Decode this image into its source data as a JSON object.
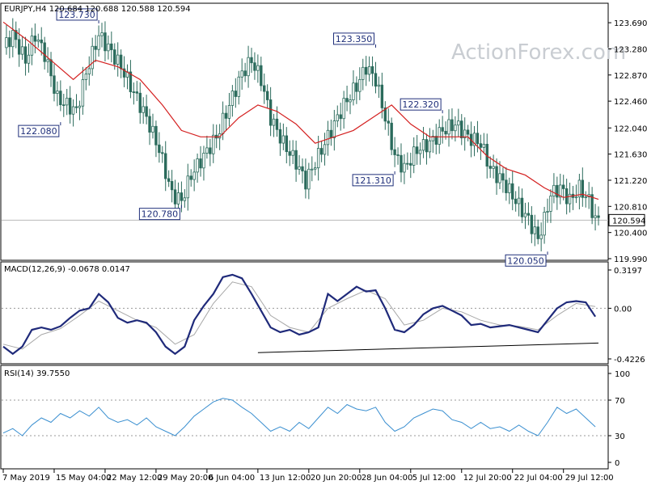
{
  "symbol_header": "EURJPY,H4  120.684 120.688 120.588 120.594",
  "watermark": "ActionForex.com",
  "colors": {
    "candles": "#2b6b5c",
    "ma": "#d42020",
    "macd": "#1f2a7a",
    "signal": "#a8a8a8",
    "rsi": "#3a8fd0",
    "border": "#000000",
    "label": "#1f2f7a"
  },
  "chart_data": [
    {
      "type": "candlestick",
      "panel": "price",
      "title": "EURJPY,H4",
      "ohlc_readout": [
        120.684,
        120.688,
        120.588,
        120.594
      ],
      "last_price": 120.594,
      "ylim": [
        119.99,
        123.97
      ],
      "yticks": [
        123.69,
        123.28,
        122.87,
        122.46,
        122.04,
        121.63,
        121.22,
        120.81,
        120.4,
        119.99
      ],
      "ytick_labels": [
        "123.690",
        "123.280",
        "122.870",
        "122.460",
        "122.040",
        "121.630",
        "121.220",
        "120.810",
        "120.400",
        "119.990"
      ],
      "last_label": "120.594",
      "close_path": [
        [
          0,
          123.3
        ],
        [
          3,
          123.5
        ],
        [
          7,
          123.1
        ],
        [
          10,
          123.5
        ],
        [
          13,
          123.2
        ],
        [
          17,
          122.5
        ],
        [
          20,
          122.4
        ],
        [
          23,
          122.3
        ],
        [
          26,
          122.9
        ],
        [
          30,
          123.5
        ],
        [
          33,
          123.3
        ],
        [
          37,
          123.0
        ],
        [
          41,
          122.6
        ],
        [
          45,
          122.2
        ],
        [
          49,
          121.7
        ],
        [
          53,
          121.0
        ],
        [
          56,
          120.9
        ],
        [
          59,
          121.3
        ],
        [
          63,
          121.6
        ],
        [
          67,
          121.9
        ],
        [
          71,
          122.4
        ],
        [
          75,
          122.9
        ],
        [
          78,
          123.1
        ],
        [
          81,
          122.8
        ],
        [
          84,
          122.2
        ],
        [
          88,
          121.8
        ],
        [
          92,
          121.5
        ],
        [
          95,
          121.2
        ],
        [
          99,
          121.6
        ],
        [
          103,
          122.0
        ],
        [
          107,
          122.4
        ],
        [
          111,
          122.7
        ],
        [
          114,
          123.0
        ],
        [
          117,
          122.8
        ],
        [
          120,
          122.2
        ],
        [
          123,
          121.6
        ],
        [
          126,
          121.4
        ],
        [
          130,
          121.7
        ],
        [
          134,
          121.8
        ],
        [
          138,
          122.0
        ],
        [
          142,
          122.1
        ],
        [
          146,
          121.9
        ],
        [
          150,
          121.8
        ],
        [
          153,
          121.4
        ],
        [
          157,
          121.2
        ],
        [
          161,
          120.9
        ],
        [
          165,
          120.6
        ],
        [
          168,
          120.3
        ],
        [
          170,
          120.6
        ],
        [
          172,
          121.0
        ],
        [
          175,
          121.1
        ],
        [
          178,
          120.9
        ],
        [
          181,
          121.1
        ],
        [
          184,
          120.9
        ],
        [
          186,
          120.6
        ]
      ],
      "ma_path": [
        [
          0,
          123.7
        ],
        [
          8,
          123.4
        ],
        [
          15,
          123.1
        ],
        [
          22,
          122.8
        ],
        [
          29,
          123.1
        ],
        [
          36,
          123.0
        ],
        [
          43,
          122.8
        ],
        [
          50,
          122.4
        ],
        [
          56,
          122.0
        ],
        [
          62,
          121.9
        ],
        [
          68,
          121.9
        ],
        [
          74,
          122.2
        ],
        [
          80,
          122.4
        ],
        [
          86,
          122.3
        ],
        [
          92,
          122.1
        ],
        [
          98,
          121.8
        ],
        [
          104,
          121.9
        ],
        [
          110,
          122.0
        ],
        [
          116,
          122.2
        ],
        [
          122,
          122.4
        ],
        [
          128,
          122.1
        ],
        [
          134,
          121.9
        ],
        [
          140,
          121.9
        ],
        [
          146,
          121.9
        ],
        [
          152,
          121.6
        ],
        [
          158,
          121.4
        ],
        [
          164,
          121.3
        ],
        [
          170,
          121.1
        ],
        [
          176,
          120.95
        ],
        [
          182,
          121.0
        ],
        [
          187,
          120.92
        ]
      ],
      "annotations": [
        {
          "text": "123.730",
          "x": 30,
          "value": 123.73
        },
        {
          "text": "122.080",
          "x": 18,
          "value": 122.08
        },
        {
          "text": "120.780",
          "x": 56,
          "value": 120.78
        },
        {
          "text": "123.350",
          "x": 117,
          "value": 123.35
        },
        {
          "text": "122.320",
          "x": 138,
          "value": 122.32
        },
        {
          "text": "121.310",
          "x": 123,
          "value": 121.31
        },
        {
          "text": "120.050",
          "x": 171,
          "value": 120.05
        }
      ]
    },
    {
      "type": "line",
      "panel": "macd",
      "title": "MACD(12,26,9) -0.0678 0.0147",
      "ylim": [
        -0.4226,
        0.3197
      ],
      "ytick_labels": [
        "0.3197",
        "0.00",
        "-0.4226"
      ],
      "series": [
        {
          "name": "MACD",
          "points": [
            [
              0,
              -0.32
            ],
            [
              3,
              -0.38
            ],
            [
              6,
              -0.32
            ],
            [
              9,
              -0.18
            ],
            [
              12,
              -0.16
            ],
            [
              15,
              -0.18
            ],
            [
              18,
              -0.15
            ],
            [
              21,
              -0.08
            ],
            [
              24,
              -0.02
            ],
            [
              27,
              0.0
            ],
            [
              30,
              0.12
            ],
            [
              33,
              0.05
            ],
            [
              36,
              -0.08
            ],
            [
              39,
              -0.12
            ],
            [
              42,
              -0.1
            ],
            [
              45,
              -0.12
            ],
            [
              48,
              -0.2
            ],
            [
              51,
              -0.32
            ],
            [
              54,
              -0.38
            ],
            [
              57,
              -0.32
            ],
            [
              60,
              -0.1
            ],
            [
              63,
              0.02
            ],
            [
              66,
              0.12
            ],
            [
              69,
              0.26
            ],
            [
              72,
              0.28
            ],
            [
              75,
              0.25
            ],
            [
              78,
              0.12
            ],
            [
              81,
              -0.02
            ],
            [
              84,
              -0.16
            ],
            [
              87,
              -0.2
            ],
            [
              90,
              -0.18
            ],
            [
              93,
              -0.22
            ],
            [
              96,
              -0.2
            ],
            [
              99,
              -0.16
            ],
            [
              102,
              0.12
            ],
            [
              105,
              0.06
            ],
            [
              108,
              0.12
            ],
            [
              111,
              0.18
            ],
            [
              114,
              0.14
            ],
            [
              117,
              0.15
            ],
            [
              120,
              0.0
            ],
            [
              123,
              -0.18
            ],
            [
              126,
              -0.2
            ],
            [
              129,
              -0.14
            ],
            [
              132,
              -0.05
            ],
            [
              135,
              0.0
            ],
            [
              138,
              0.02
            ],
            [
              141,
              -0.02
            ],
            [
              144,
              -0.06
            ],
            [
              147,
              -0.14
            ],
            [
              150,
              -0.13
            ],
            [
              153,
              -0.16
            ],
            [
              156,
              -0.15
            ],
            [
              159,
              -0.14
            ],
            [
              162,
              -0.16
            ],
            [
              165,
              -0.18
            ],
            [
              168,
              -0.2
            ],
            [
              171,
              -0.1
            ],
            [
              174,
              0.0
            ],
            [
              177,
              0.05
            ],
            [
              180,
              0.06
            ],
            [
              183,
              0.05
            ],
            [
              186,
              -0.07
            ]
          ]
        },
        {
          "name": "Signal",
          "points": [
            [
              0,
              -0.3
            ],
            [
              6,
              -0.34
            ],
            [
              12,
              -0.22
            ],
            [
              18,
              -0.17
            ],
            [
              24,
              -0.06
            ],
            [
              30,
              0.06
            ],
            [
              36,
              -0.02
            ],
            [
              42,
              -0.1
            ],
            [
              48,
              -0.16
            ],
            [
              54,
              -0.3
            ],
            [
              60,
              -0.22
            ],
            [
              66,
              0.04
            ],
            [
              72,
              0.22
            ],
            [
              78,
              0.18
            ],
            [
              84,
              -0.06
            ],
            [
              90,
              -0.16
            ],
            [
              96,
              -0.2
            ],
            [
              102,
              0.0
            ],
            [
              108,
              0.08
            ],
            [
              114,
              0.15
            ],
            [
              120,
              0.08
            ],
            [
              126,
              -0.14
            ],
            [
              132,
              -0.1
            ],
            [
              138,
              0.0
            ],
            [
              144,
              -0.03
            ],
            [
              150,
              -0.1
            ],
            [
              156,
              -0.14
            ],
            [
              162,
              -0.15
            ],
            [
              168,
              -0.18
            ],
            [
              174,
              -0.06
            ],
            [
              180,
              0.04
            ],
            [
              186,
              0.015
            ]
          ]
        }
      ],
      "trendline": [
        [
          80,
          -0.37
        ],
        [
          187,
          -0.29
        ]
      ]
    },
    {
      "type": "line",
      "panel": "rsi",
      "title": "RSI(14) 39.7550",
      "ylim": [
        0,
        100
      ],
      "ytick_labels": [
        "100",
        "70",
        "30",
        "0"
      ],
      "levels": [
        70,
        30
      ],
      "series": [
        {
          "name": "RSI(14)",
          "points": [
            [
              0,
              33
            ],
            [
              3,
              38
            ],
            [
              6,
              30
            ],
            [
              9,
              42
            ],
            [
              12,
              50
            ],
            [
              15,
              45
            ],
            [
              18,
              55
            ],
            [
              21,
              50
            ],
            [
              24,
              58
            ],
            [
              27,
              52
            ],
            [
              30,
              62
            ],
            [
              33,
              50
            ],
            [
              36,
              45
            ],
            [
              39,
              48
            ],
            [
              42,
              42
            ],
            [
              45,
              50
            ],
            [
              48,
              40
            ],
            [
              51,
              35
            ],
            [
              54,
              30
            ],
            [
              57,
              40
            ],
            [
              60,
              52
            ],
            [
              63,
              60
            ],
            [
              66,
              68
            ],
            [
              69,
              72
            ],
            [
              72,
              70
            ],
            [
              75,
              62
            ],
            [
              78,
              55
            ],
            [
              81,
              45
            ],
            [
              84,
              35
            ],
            [
              87,
              40
            ],
            [
              90,
              35
            ],
            [
              93,
              45
            ],
            [
              96,
              38
            ],
            [
              99,
              50
            ],
            [
              102,
              62
            ],
            [
              105,
              55
            ],
            [
              108,
              65
            ],
            [
              111,
              60
            ],
            [
              114,
              58
            ],
            [
              117,
              62
            ],
            [
              120,
              45
            ],
            [
              123,
              35
            ],
            [
              126,
              40
            ],
            [
              129,
              50
            ],
            [
              132,
              55
            ],
            [
              135,
              60
            ],
            [
              138,
              58
            ],
            [
              141,
              48
            ],
            [
              144,
              45
            ],
            [
              147,
              38
            ],
            [
              150,
              45
            ],
            [
              153,
              38
            ],
            [
              156,
              40
            ],
            [
              159,
              35
            ],
            [
              162,
              42
            ],
            [
              165,
              35
            ],
            [
              168,
              30
            ],
            [
              171,
              45
            ],
            [
              174,
              62
            ],
            [
              177,
              55
            ],
            [
              180,
              60
            ],
            [
              183,
              50
            ],
            [
              186,
              40
            ]
          ]
        }
      ]
    }
  ],
  "x_axis": {
    "range": [
      0,
      187
    ],
    "ticks": [
      {
        "x": 0,
        "label": "7 May 2019"
      },
      {
        "x": 16,
        "label": "15 May 04:00"
      },
      {
        "x": 32,
        "label": "22 May 12:00"
      },
      {
        "x": 48,
        "label": "29 May 20:00"
      },
      {
        "x": 64,
        "label": "6 Jun 04:00"
      },
      {
        "x": 80,
        "label": "13 Jun 12:00"
      },
      {
        "x": 96,
        "label": "20 Jun 20:00"
      },
      {
        "x": 112,
        "label": "28 Jun 04:00"
      },
      {
        "x": 128,
        "label": "5 Jul 12:00"
      },
      {
        "x": 144,
        "label": "12 Jul 20:00"
      },
      {
        "x": 160,
        "label": "22 Jul 04:00"
      },
      {
        "x": 176,
        "label": "29 Jul 12:00"
      }
    ]
  }
}
